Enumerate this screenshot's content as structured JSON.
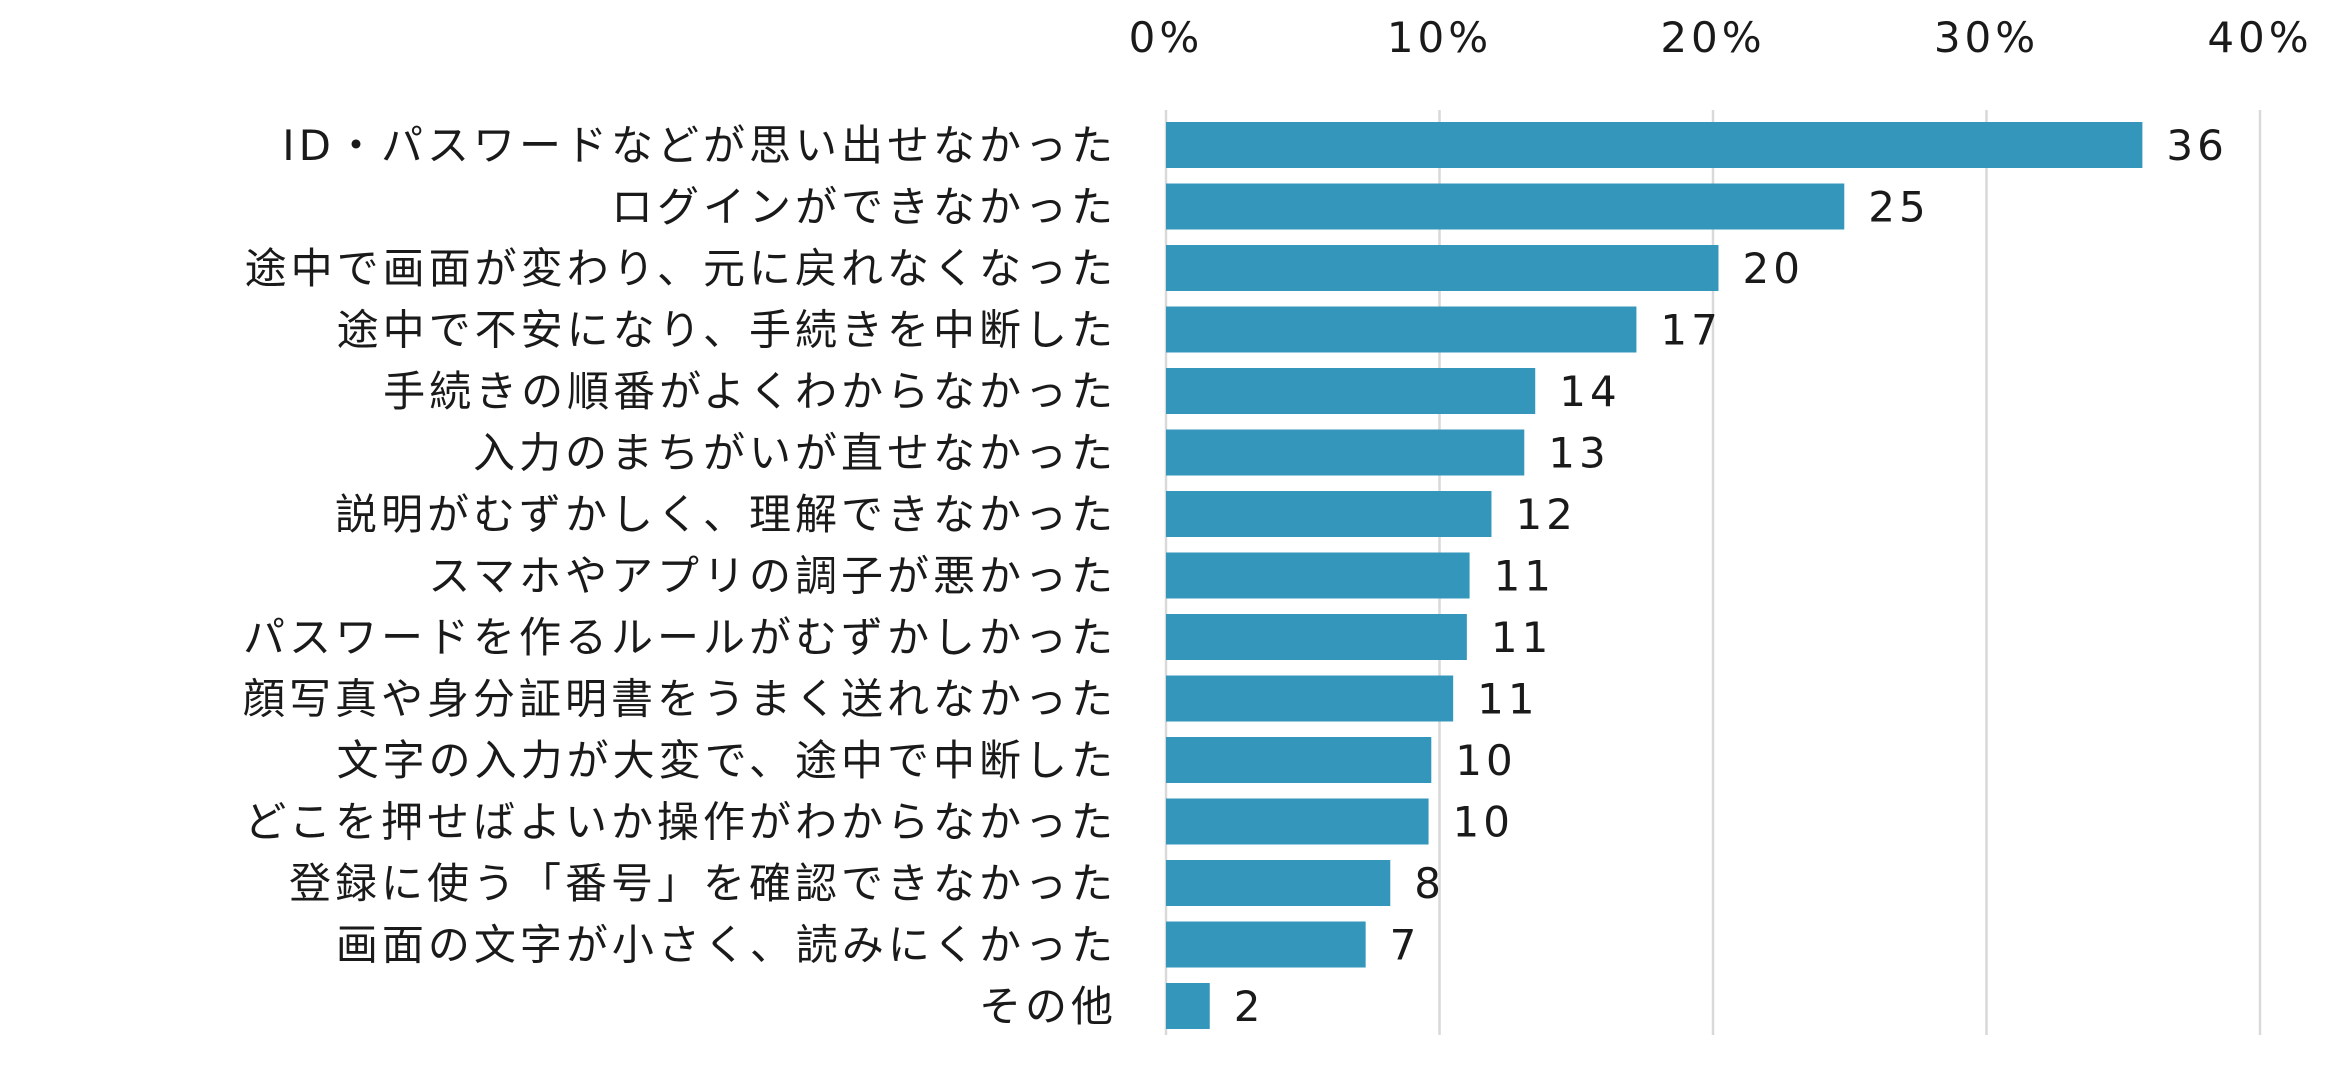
{
  "chart_data": {
    "type": "bar",
    "orientation": "horizontal",
    "title": "",
    "xlabel": "",
    "ylabel": "",
    "xlim": [
      0,
      40
    ],
    "x_ticks": [
      0,
      10,
      20,
      30,
      40
    ],
    "x_tick_labels": [
      "0%",
      "10%",
      "20%",
      "30%",
      "40%"
    ],
    "x_axis_position": "top",
    "grid": true,
    "legend": "none",
    "bar_color": "#3496bb",
    "grid_color": "#d9d9d9",
    "categories": [
      "ID・パスワードなどが思い出せなかった",
      "ログインができなかった",
      "途中で画面が変わり、元に戻れなくなった",
      "途中で不安になり、手続きを中断した",
      "手続きの順番がよくわからなかった",
      "入力のまちがいが直せなかった",
      "説明がむずかしく、理解できなかった",
      "スマホやアプリの調子が悪かった",
      "パスワードを作るルールがむずかしかった",
      "顔写真や身分証明書をうまく送れなかった",
      "文字の入力が大変で、途中で中断した",
      "どこを押せばよいか操作がわからなかった",
      "登録に使う「番号」を確認できなかった",
      "画面の文字が小さく、読みにくかった",
      "その他"
    ],
    "values": [
      35.7,
      24.8,
      20.2,
      17.2,
      13.5,
      13.1,
      11.9,
      11.1,
      11.0,
      10.5,
      9.7,
      9.6,
      8.2,
      7.3,
      1.6
    ],
    "data_labels": [
      "36",
      "25",
      "20",
      "17",
      "14",
      "13",
      "12",
      "11",
      "11",
      "11",
      "10",
      "10",
      "8",
      "7",
      "2"
    ]
  }
}
